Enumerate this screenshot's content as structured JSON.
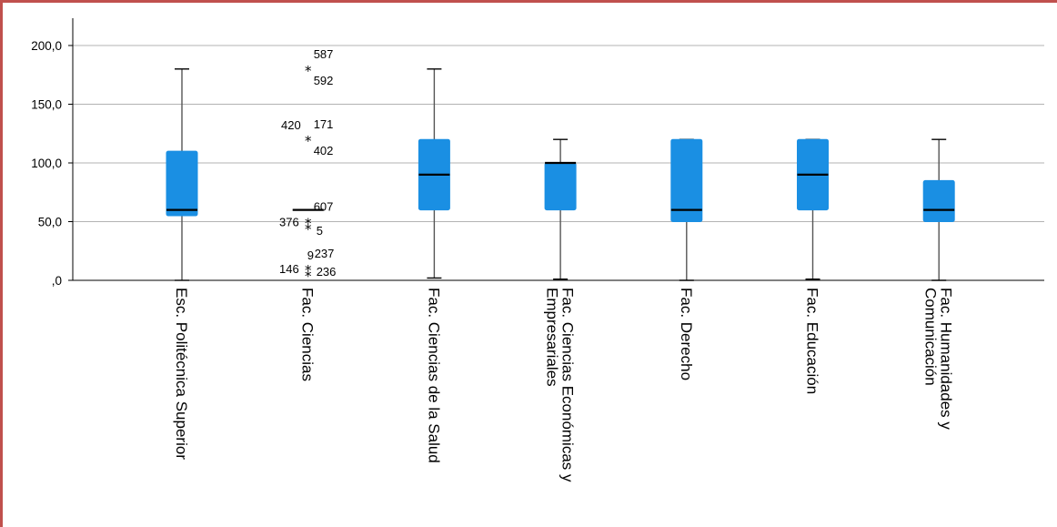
{
  "chart_data": {
    "type": "boxplot",
    "title": "",
    "xlabel": "",
    "ylabel": "",
    "ylim": [
      0,
      205
    ],
    "yticks": [
      0,
      50,
      100,
      150,
      200
    ],
    "ytick_labels": [
      ",0",
      "50,0",
      "100,0",
      "150,0",
      "200,0"
    ],
    "grid": "horizontal",
    "box_color": "#1a8fe3",
    "categories": [
      [
        "Esc. Politécnica Superior"
      ],
      [
        "Fac. Ciencias"
      ],
      [
        "Fac. Ciencias de la Salud"
      ],
      [
        "Fac. Ciencias Económicas y",
        "Empresariales"
      ],
      [
        "Fac. Derecho"
      ],
      [
        "Fac. Educación"
      ],
      [
        "Fac. Humanidades y",
        "Comunicación"
      ]
    ],
    "boxes": [
      {
        "whisker_low": 0,
        "q1": 55,
        "median": 60,
        "q3": 110,
        "whisker_high": 180
      },
      {
        "whisker_low": null,
        "q1": null,
        "median": 60,
        "q3": null,
        "whisker_high": null
      },
      {
        "whisker_low": 2,
        "q1": 60,
        "median": 90,
        "q3": 120,
        "whisker_high": 180
      },
      {
        "whisker_low": 1,
        "q1": 60,
        "median": 100,
        "q3": 100,
        "whisker_high": 120
      },
      {
        "whisker_low": 0,
        "q1": 50,
        "median": 60,
        "q3": 120,
        "whisker_high": 120
      },
      {
        "whisker_low": 1,
        "q1": 60,
        "median": 90,
        "q3": 120,
        "whisker_high": 120
      },
      {
        "whisker_low": 0,
        "q1": 50,
        "median": 60,
        "q3": 85,
        "whisker_high": 120
      }
    ],
    "outliers": [
      {
        "category": 1,
        "value": 180,
        "labels": [
          {
            "text": "587",
            "pos": "above-right"
          },
          {
            "text": "592",
            "pos": "below-right"
          }
        ]
      },
      {
        "category": 1,
        "value": 120,
        "labels": [
          {
            "text": "420",
            "pos": "above-left"
          },
          {
            "text": "171",
            "pos": "above-right"
          },
          {
            "text": "402",
            "pos": "below-right"
          }
        ]
      },
      {
        "category": 1,
        "value": 50,
        "labels": [
          {
            "text": "376",
            "pos": "left"
          },
          {
            "text": "607",
            "pos": "above-right"
          }
        ]
      },
      {
        "category": 1,
        "value": 45,
        "labels": [
          {
            "text": "5",
            "pos": "right"
          }
        ]
      },
      {
        "category": 1,
        "value": 10,
        "labels": [
          {
            "text": "146",
            "pos": "left"
          },
          {
            "text": "9",
            "pos": "above-right-near"
          },
          {
            "text": "237",
            "pos": "above-right"
          },
          {
            "text": "236",
            "pos": "right"
          }
        ]
      },
      {
        "category": 1,
        "value": 5,
        "labels": []
      }
    ]
  }
}
